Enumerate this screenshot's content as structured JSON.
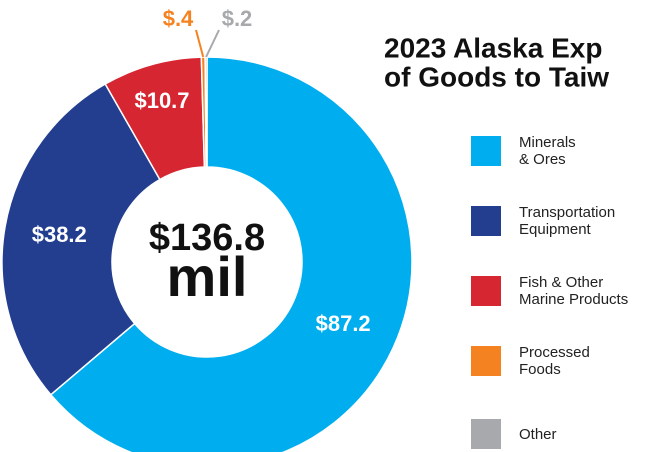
{
  "chart_data": {
    "type": "donut",
    "title": [
      "2023 Alaska Exp",
      "of Goods to Taiw"
    ],
    "center_label": [
      "$136.8",
      "mil"
    ],
    "categories": [
      "Minerals\n& Ores",
      "Transportation\nEquipment",
      "Fish & Other\nMarine Products",
      "Processed\nFoods",
      "Other"
    ],
    "values": [
      87.2,
      38.2,
      10.7,
      0.4,
      0.2
    ],
    "value_labels": [
      "$87.2",
      "$38.2",
      "$10.7",
      "$.4",
      "$.2"
    ],
    "colors": [
      "#00aeef",
      "#233e8f",
      "#d62631",
      "#f58220",
      "#a7a9ac"
    ]
  }
}
